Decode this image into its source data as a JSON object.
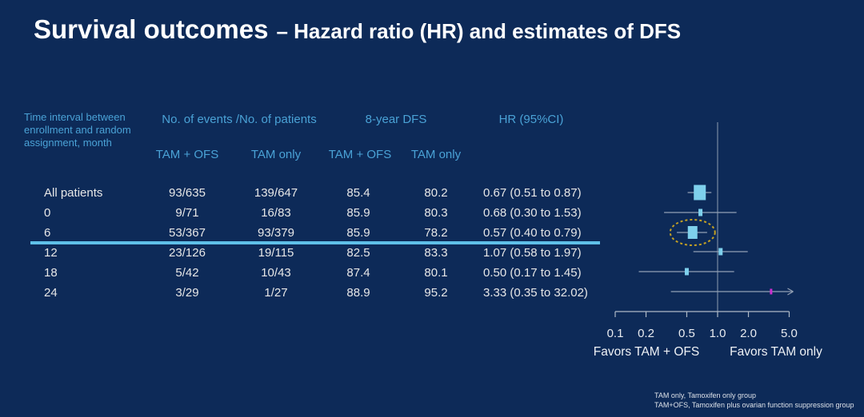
{
  "slide": {
    "title_main": "Survival outcomes",
    "title_sub": "– Hazard ratio (HR) and estimates of DFS"
  },
  "table": {
    "corner_header": "Time interval between enrollment and random assignment, month",
    "group_headers": {
      "events": "No. of events /No. of patients",
      "dfs": "8-year DFS",
      "hr": "HR (95%CI)"
    },
    "sub_headers": {
      "events_tam_ofs": "TAM + OFS",
      "events_tam_only": "TAM only",
      "dfs_tam_ofs": "TAM + OFS",
      "dfs_tam_only": "TAM only"
    },
    "rows": [
      {
        "label": "All patients",
        "events_tam_ofs": "93/635",
        "events_tam_only": "139/647",
        "dfs_tam_ofs": "85.4",
        "dfs_tam_only": "80.2",
        "hr_ci": "0.67 (0.51 to 0.87)",
        "highlighted": false
      },
      {
        "label": "0",
        "events_tam_ofs": "9/71",
        "events_tam_only": "16/83",
        "dfs_tam_ofs": "85.9",
        "dfs_tam_only": "80.3",
        "hr_ci": "0.68 (0.30 to 1.53)",
        "highlighted": false
      },
      {
        "label": "6",
        "events_tam_ofs": "53/367",
        "events_tam_only": "93/379",
        "dfs_tam_ofs": "85.9",
        "dfs_tam_only": "78.2",
        "hr_ci": "0.57 (0.40 to 0.79)",
        "highlighted": true
      },
      {
        "label": "12",
        "events_tam_ofs": "23/126",
        "events_tam_only": "19/115",
        "dfs_tam_ofs": "82.5",
        "dfs_tam_only": "83.3",
        "hr_ci": "1.07 (0.58 to 1.97)",
        "highlighted": false
      },
      {
        "label": "18",
        "events_tam_ofs": "5/42",
        "events_tam_only": "10/43",
        "dfs_tam_ofs": "87.4",
        "dfs_tam_only": "80.1",
        "hr_ci": "0.50 (0.17 to 1.45)",
        "highlighted": false
      },
      {
        "label": "24",
        "events_tam_ofs": "3/29",
        "events_tam_only": "1/27",
        "dfs_tam_ofs": "88.9",
        "dfs_tam_only": "95.2",
        "hr_ci": "3.33 (0.35 to 32.02)",
        "highlighted": false
      }
    ]
  },
  "chart_data": {
    "type": "forest",
    "x_scale": "log",
    "x_ticks": [
      0.1,
      0.2,
      0.5,
      1.0,
      2.0,
      5.0
    ],
    "x_range": [
      0.1,
      5.0
    ],
    "reference_line": 1.0,
    "axis_label_left": "Favors TAM + OFS",
    "axis_label_right": "Favors TAM only",
    "points": [
      {
        "label": "All patients",
        "hr": 0.67,
        "lo": 0.51,
        "hi": 0.87,
        "marker": "large",
        "marker_color": "cyan",
        "circled": false,
        "arrow_right": false
      },
      {
        "label": "0",
        "hr": 0.68,
        "lo": 0.3,
        "hi": 1.53,
        "marker": "small",
        "marker_color": "cyan",
        "circled": false,
        "arrow_right": false
      },
      {
        "label": "6",
        "hr": 0.57,
        "lo": 0.4,
        "hi": 0.79,
        "marker": "medium",
        "marker_color": "cyan",
        "circled": true,
        "arrow_right": false
      },
      {
        "label": "12",
        "hr": 1.07,
        "lo": 0.58,
        "hi": 1.97,
        "marker": "small",
        "marker_color": "cyan",
        "circled": false,
        "arrow_right": false
      },
      {
        "label": "18",
        "hr": 0.5,
        "lo": 0.17,
        "hi": 1.45,
        "marker": "small",
        "marker_color": "cyan",
        "circled": false,
        "arrow_right": false
      },
      {
        "label": "24",
        "hr": 3.33,
        "lo": 0.35,
        "hi": 32.02,
        "marker": "tiny",
        "marker_color": "magenta",
        "circled": false,
        "arrow_right": true
      }
    ]
  },
  "footnotes": [
    "TAM only, Tamoxifen only group",
    "TAM+OFS, Tamoxifen plus ovarian function suppression group"
  ],
  "colors": {
    "background": "#0d2a58",
    "title_text": "#ffffff",
    "header_text": "#4aa2d6",
    "body_text": "#e7e7e7",
    "highlight_line": "#5fc0e8",
    "marker_fill": "#7ed0ec",
    "marker_magenta": "#cc2fd0",
    "ci_line": "#93a0b4",
    "axis_line": "#aeb9c6",
    "ellipse_annotation": "#c3a024"
  }
}
